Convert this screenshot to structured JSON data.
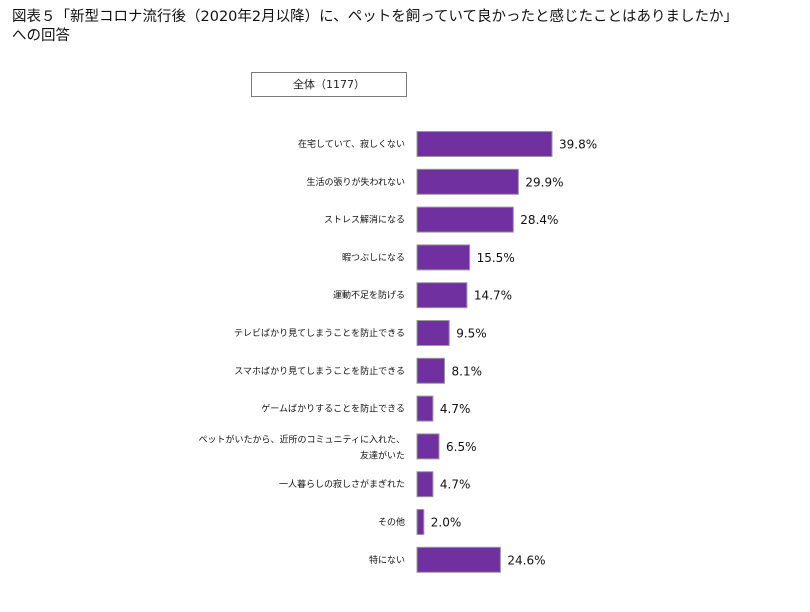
{
  "title": {
    "line1": "図表５「新型コロナ流行後（2020年2月以降）に、ペットを飼っていて良かったと感じたことはありましたか」",
    "line2": "への回答"
  },
  "legend_label": "全体（1177）",
  "colors": {
    "bar": "#7030a0",
    "bar_border": "#9a9a9a"
  },
  "chart_data": {
    "type": "bar",
    "orientation": "horizontal",
    "unit": "%",
    "series": [
      {
        "name": "全体（1177）",
        "values": [
          39.8,
          29.9,
          28.4,
          15.5,
          14.7,
          9.5,
          8.1,
          4.7,
          6.5,
          4.7,
          2.0,
          24.6
        ]
      }
    ],
    "categories": [
      [
        "在宅していて、寂しくない"
      ],
      [
        "生活の張りが失われない"
      ],
      [
        "ストレス解消になる"
      ],
      [
        "暇つぶしになる"
      ],
      [
        "運動不足を防げる"
      ],
      [
        "テレビばかり見てしまうことを防止できる"
      ],
      [
        "スマホばかり見てしまうことを防止できる"
      ],
      [
        "ゲームばかりすることを防止できる"
      ],
      [
        "ペットがいたから、近所のコミュニティに入れた、",
        "友達がいた"
      ],
      [
        "一人暮らしの寂しさがまぎれた"
      ],
      [
        "その他"
      ],
      [
        "特にない"
      ]
    ],
    "value_labels": [
      "39.8%",
      "29.9%",
      "28.4%",
      "15.5%",
      "14.7%",
      "9.5%",
      "8.1%",
      "4.7%",
      "6.5%",
      "4.7%",
      "2.0%",
      "24.6%"
    ],
    "xlim": [
      0,
      40
    ]
  }
}
